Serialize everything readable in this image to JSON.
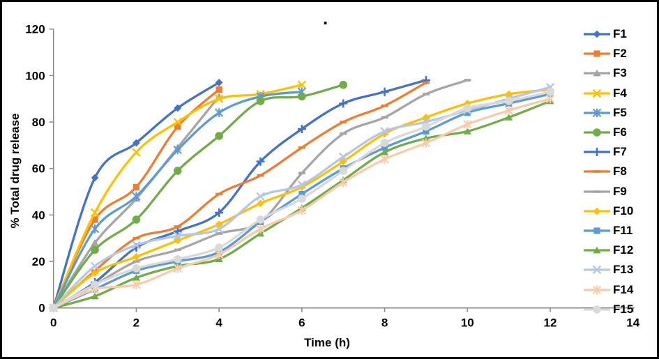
{
  "title": ".",
  "chart_data": {
    "type": "line",
    "title": ".",
    "xlabel": "Time (h)",
    "ylabel": "% Total drug release",
    "xlim": [
      0,
      14
    ],
    "ylim": [
      0,
      120
    ],
    "x_ticks": [
      0,
      2,
      4,
      6,
      8,
      10,
      12,
      14
    ],
    "y_ticks": [
      0,
      20,
      40,
      60,
      80,
      100,
      120
    ],
    "grid": false,
    "legend_position": "right-outside",
    "series": [
      {
        "name": "F1",
        "color": "#4472C4",
        "marker": "diamond",
        "x": [
          0,
          1,
          2,
          3,
          4
        ],
        "y": [
          0,
          56,
          71,
          86,
          97
        ]
      },
      {
        "name": "F2",
        "color": "#ED7D31",
        "marker": "square",
        "x": [
          0,
          1,
          2,
          3,
          4
        ],
        "y": [
          0,
          38,
          52,
          78,
          94
        ]
      },
      {
        "name": "F3",
        "color": "#A5A5A5",
        "marker": "triangle",
        "x": [
          0,
          1,
          2,
          3,
          4
        ],
        "y": [
          0,
          28,
          47,
          69,
          91
        ]
      },
      {
        "name": "F4",
        "color": "#FFC000",
        "marker": "x",
        "x": [
          0,
          1,
          2,
          3,
          4,
          5,
          6
        ],
        "y": [
          0,
          41,
          67,
          80,
          90,
          92,
          96
        ]
      },
      {
        "name": "F5",
        "color": "#5B9BD5",
        "marker": "star",
        "x": [
          0,
          1,
          2,
          3,
          4,
          5,
          6
        ],
        "y": [
          0,
          34,
          48,
          68,
          84,
          91,
          93
        ]
      },
      {
        "name": "F6",
        "color": "#70AD47",
        "marker": "circle",
        "x": [
          0,
          1,
          2,
          3,
          4,
          5,
          6,
          7
        ],
        "y": [
          0,
          25,
          38,
          59,
          74,
          89,
          91,
          96
        ]
      },
      {
        "name": "F7",
        "color": "#4472C4",
        "marker": "plus",
        "x": [
          0,
          1,
          2,
          3,
          4,
          5,
          6,
          7,
          8,
          9
        ],
        "y": [
          0,
          11,
          26,
          33,
          41,
          63,
          77,
          88,
          93,
          98
        ]
      },
      {
        "name": "F8",
        "color": "#ED7D31",
        "marker": "dash",
        "x": [
          0,
          1,
          2,
          3,
          4,
          5,
          6,
          7,
          8,
          9
        ],
        "y": [
          0,
          16,
          30,
          35,
          49,
          57,
          69,
          80,
          87,
          97
        ]
      },
      {
        "name": "F9",
        "color": "#A5A5A5",
        "marker": "dash",
        "x": [
          0,
          1,
          2,
          3,
          4,
          5,
          6,
          7,
          8,
          9,
          10
        ],
        "y": [
          0,
          10,
          20,
          25,
          32,
          37,
          58,
          75,
          82,
          92,
          98
        ]
      },
      {
        "name": "F10",
        "color": "#FFC000",
        "marker": "diamond",
        "x": [
          0,
          1,
          2,
          3,
          4,
          5,
          6,
          7,
          8,
          9,
          10,
          11,
          12
        ],
        "y": [
          0,
          15,
          22,
          29,
          36,
          45,
          52,
          63,
          75,
          82,
          88,
          92,
          94
        ]
      },
      {
        "name": "F11",
        "color": "#5B9BD5",
        "marker": "square",
        "x": [
          0,
          1,
          2,
          3,
          4,
          5,
          6,
          7,
          8,
          9,
          10,
          11,
          12
        ],
        "y": [
          0,
          8,
          16,
          20,
          24,
          37,
          49,
          60,
          69,
          76,
          84,
          88,
          92
        ]
      },
      {
        "name": "F12",
        "color": "#70AD47",
        "marker": "triangle",
        "x": [
          0,
          1,
          2,
          3,
          4,
          5,
          6,
          7,
          8,
          9,
          10,
          11,
          12
        ],
        "y": [
          0,
          5,
          13,
          18,
          21,
          32,
          43,
          55,
          67,
          73,
          76,
          82,
          89
        ]
      },
      {
        "name": "F13",
        "color": "#B4C7E7",
        "marker": "x",
        "x": [
          0,
          1,
          2,
          3,
          4,
          5,
          6,
          7,
          8,
          9,
          10,
          11,
          12
        ],
        "y": [
          0,
          18,
          27,
          31,
          34,
          48,
          53,
          65,
          76,
          80,
          85,
          90,
          95
        ]
      },
      {
        "name": "F14",
        "color": "#F8CBAD",
        "marker": "star",
        "x": [
          0,
          1,
          2,
          3,
          4,
          5,
          6,
          7,
          8,
          9,
          10,
          11,
          12
        ],
        "y": [
          0,
          8,
          10,
          17,
          23,
          34,
          42,
          54,
          64,
          71,
          79,
          85,
          90
        ]
      },
      {
        "name": "F15",
        "color": "#D9D9D9",
        "marker": "circle",
        "x": [
          0,
          1,
          2,
          3,
          4,
          5,
          6,
          7,
          8,
          9,
          10,
          11,
          12
        ],
        "y": [
          0,
          10,
          17,
          21,
          26,
          38,
          47,
          59,
          71,
          78,
          86,
          89,
          93
        ]
      }
    ]
  }
}
